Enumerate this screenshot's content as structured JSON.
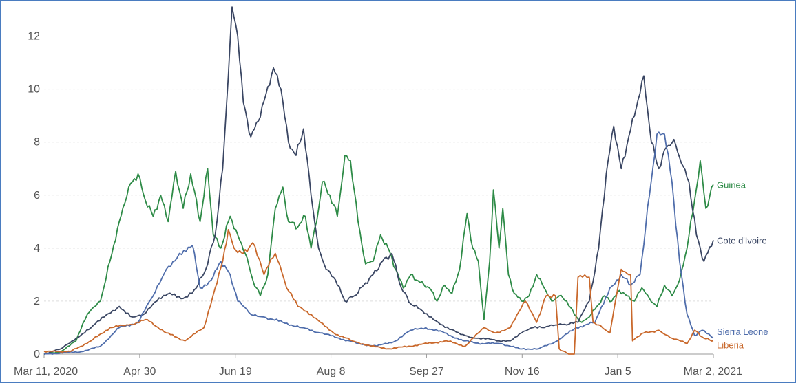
{
  "chart_data": {
    "type": "line",
    "title": "",
    "xlabel": "",
    "ylabel": "",
    "ylim": [
      0,
      13
    ],
    "grid": true,
    "x_range": [
      "2020-03-11",
      "2021-03-02"
    ],
    "x_tick_labels": [
      "Mar 11, 2020",
      "Apr 30",
      "Jun 19",
      "Aug 8",
      "Sep 27",
      "Nov 16",
      "Jan 5",
      "Mar 2, 2021"
    ],
    "y_ticks": [
      0,
      2,
      4,
      6,
      8,
      10,
      12
    ],
    "y_tick_labels": [
      "0",
      "2",
      "4",
      "6",
      "8",
      "10",
      "12"
    ],
    "series": [
      {
        "name": "Guinea",
        "color": "#2e8b47",
        "points": [
          [
            "2020-03-11",
            0.0
          ],
          [
            "2020-03-20",
            0.1
          ],
          [
            "2020-03-28",
            0.5
          ],
          [
            "2020-04-03",
            1.5
          ],
          [
            "2020-04-10",
            2.0
          ],
          [
            "2020-04-15",
            3.5
          ],
          [
            "2020-04-20",
            5.0
          ],
          [
            "2020-04-25",
            6.3
          ],
          [
            "2020-04-30",
            6.8
          ],
          [
            "2020-05-03",
            6.0
          ],
          [
            "2020-05-08",
            5.2
          ],
          [
            "2020-05-12",
            6.0
          ],
          [
            "2020-05-16",
            5.0
          ],
          [
            "2020-05-20",
            6.9
          ],
          [
            "2020-05-24",
            5.5
          ],
          [
            "2020-05-28",
            6.8
          ],
          [
            "2020-06-02",
            5.0
          ],
          [
            "2020-06-06",
            7.0
          ],
          [
            "2020-06-09",
            4.5
          ],
          [
            "2020-06-13",
            4.0
          ],
          [
            "2020-06-18",
            5.2
          ],
          [
            "2020-06-22",
            4.5
          ],
          [
            "2020-06-26",
            3.8
          ],
          [
            "2020-06-30",
            2.8
          ],
          [
            "2020-07-04",
            2.2
          ],
          [
            "2020-07-08",
            3.0
          ],
          [
            "2020-07-12",
            5.5
          ],
          [
            "2020-07-16",
            6.3
          ],
          [
            "2020-07-19",
            5.0
          ],
          [
            "2020-07-24",
            4.8
          ],
          [
            "2020-07-28",
            5.2
          ],
          [
            "2020-07-31",
            4.0
          ],
          [
            "2020-08-03",
            5.0
          ],
          [
            "2020-08-06",
            6.5
          ],
          [
            "2020-08-10",
            6.0
          ],
          [
            "2020-08-14",
            5.2
          ],
          [
            "2020-08-18",
            7.5
          ],
          [
            "2020-08-21",
            7.3
          ],
          [
            "2020-08-25",
            5.0
          ],
          [
            "2020-08-29",
            3.4
          ],
          [
            "2020-09-02",
            3.5
          ],
          [
            "2020-09-06",
            4.5
          ],
          [
            "2020-09-10",
            4.0
          ],
          [
            "2020-09-14",
            3.2
          ],
          [
            "2020-09-18",
            2.5
          ],
          [
            "2020-09-22",
            3.0
          ],
          [
            "2020-09-27",
            2.7
          ],
          [
            "2020-10-02",
            2.5
          ],
          [
            "2020-10-06",
            2.0
          ],
          [
            "2020-10-10",
            2.6
          ],
          [
            "2020-10-14",
            2.3
          ],
          [
            "2020-10-18",
            3.2
          ],
          [
            "2020-10-22",
            5.3
          ],
          [
            "2020-10-25",
            4.0
          ],
          [
            "2020-10-28",
            3.5
          ],
          [
            "2020-10-31",
            1.3
          ],
          [
            "2020-11-03",
            3.5
          ],
          [
            "2020-11-05",
            6.2
          ],
          [
            "2020-11-08",
            4.0
          ],
          [
            "2020-11-10",
            5.5
          ],
          [
            "2020-11-13",
            3.0
          ],
          [
            "2020-11-16",
            2.3
          ],
          [
            "2020-11-20",
            2.0
          ],
          [
            "2020-11-24",
            2.2
          ],
          [
            "2020-11-28",
            3.0
          ],
          [
            "2020-12-02",
            2.5
          ],
          [
            "2020-12-06",
            2.0
          ],
          [
            "2020-12-10",
            2.2
          ],
          [
            "2020-12-14",
            2.0
          ],
          [
            "2020-12-18",
            1.5
          ],
          [
            "2020-12-22",
            1.2
          ],
          [
            "2020-12-26",
            1.4
          ],
          [
            "2020-12-30",
            1.8
          ],
          [
            "2021-01-03",
            2.2
          ],
          [
            "2021-01-07",
            2.0
          ],
          [
            "2021-01-11",
            2.4
          ],
          [
            "2021-01-15",
            2.2
          ],
          [
            "2021-01-19",
            2.0
          ],
          [
            "2021-01-23",
            2.5
          ],
          [
            "2021-01-27",
            2.1
          ],
          [
            "2021-01-31",
            1.8
          ],
          [
            "2021-02-04",
            2.6
          ],
          [
            "2021-02-08",
            2.2
          ],
          [
            "2021-02-12",
            2.8
          ],
          [
            "2021-02-16",
            4.0
          ],
          [
            "2021-02-20",
            5.8
          ],
          [
            "2021-02-23",
            7.3
          ],
          [
            "2021-02-26",
            5.5
          ],
          [
            "2021-03-02",
            6.4
          ]
        ]
      },
      {
        "name": "Cote d'Ivoire",
        "color": "#3a4663",
        "points": [
          [
            "2020-03-11",
            0.0
          ],
          [
            "2020-03-20",
            0.2
          ],
          [
            "2020-03-28",
            0.6
          ],
          [
            "2020-04-05",
            1.0
          ],
          [
            "2020-04-12",
            1.4
          ],
          [
            "2020-04-20",
            1.8
          ],
          [
            "2020-04-27",
            1.4
          ],
          [
            "2020-05-03",
            1.5
          ],
          [
            "2020-05-10",
            2.0
          ],
          [
            "2020-05-17",
            2.3
          ],
          [
            "2020-05-24",
            2.1
          ],
          [
            "2020-05-31",
            2.5
          ],
          [
            "2020-06-05",
            3.2
          ],
          [
            "2020-06-10",
            4.5
          ],
          [
            "2020-06-14",
            7.0
          ],
          [
            "2020-06-17",
            10.5
          ],
          [
            "2020-06-19",
            13.1
          ],
          [
            "2020-06-22",
            12.0
          ],
          [
            "2020-06-25",
            9.5
          ],
          [
            "2020-06-29",
            8.2
          ],
          [
            "2020-07-03",
            8.8
          ],
          [
            "2020-07-07",
            9.8
          ],
          [
            "2020-07-11",
            10.8
          ],
          [
            "2020-07-15",
            10.0
          ],
          [
            "2020-07-19",
            8.0
          ],
          [
            "2020-07-23",
            7.5
          ],
          [
            "2020-07-27",
            8.5
          ],
          [
            "2020-07-31",
            6.0
          ],
          [
            "2020-08-04",
            4.0
          ],
          [
            "2020-08-08",
            3.2
          ],
          [
            "2020-08-13",
            2.8
          ],
          [
            "2020-08-18",
            2.0
          ],
          [
            "2020-08-23",
            2.2
          ],
          [
            "2020-08-28",
            2.6
          ],
          [
            "2020-09-02",
            3.0
          ],
          [
            "2020-09-07",
            3.5
          ],
          [
            "2020-09-12",
            3.8
          ],
          [
            "2020-09-17",
            2.5
          ],
          [
            "2020-09-22",
            1.9
          ],
          [
            "2020-09-27",
            1.7
          ],
          [
            "2020-10-03",
            1.4
          ],
          [
            "2020-10-09",
            1.1
          ],
          [
            "2020-10-15",
            0.9
          ],
          [
            "2020-10-21",
            0.7
          ],
          [
            "2020-10-27",
            0.6
          ],
          [
            "2020-11-02",
            0.6
          ],
          [
            "2020-11-08",
            0.5
          ],
          [
            "2020-11-14",
            0.5
          ],
          [
            "2020-11-20",
            0.8
          ],
          [
            "2020-11-26",
            1.0
          ],
          [
            "2020-12-02",
            1.0
          ],
          [
            "2020-12-08",
            1.1
          ],
          [
            "2020-12-14",
            1.1
          ],
          [
            "2020-12-20",
            1.2
          ],
          [
            "2020-12-26",
            2.0
          ],
          [
            "2020-12-31",
            4.0
          ],
          [
            "2021-01-04",
            6.8
          ],
          [
            "2021-01-08",
            8.6
          ],
          [
            "2021-01-12",
            7.0
          ],
          [
            "2021-01-16",
            8.2
          ],
          [
            "2021-01-20",
            9.3
          ],
          [
            "2021-01-24",
            10.5
          ],
          [
            "2021-01-28",
            8.0
          ],
          [
            "2021-02-01",
            7.0
          ],
          [
            "2021-02-05",
            7.8
          ],
          [
            "2021-02-09",
            8.1
          ],
          [
            "2021-02-13",
            7.2
          ],
          [
            "2021-02-17",
            6.5
          ],
          [
            "2021-02-21",
            4.5
          ],
          [
            "2021-02-25",
            3.5
          ],
          [
            "2021-03-02",
            4.3
          ]
        ]
      },
      {
        "name": "Sierra Leone",
        "color": "#4f6dab",
        "points": [
          [
            "2020-03-11",
            0.0
          ],
          [
            "2020-04-01",
            0.1
          ],
          [
            "2020-04-10",
            0.3
          ],
          [
            "2020-04-20",
            1.0
          ],
          [
            "2020-04-30",
            1.2
          ],
          [
            "2020-05-08",
            2.2
          ],
          [
            "2020-05-15",
            3.2
          ],
          [
            "2020-05-22",
            3.8
          ],
          [
            "2020-05-29",
            4.1
          ],
          [
            "2020-06-02",
            2.5
          ],
          [
            "2020-06-08",
            2.8
          ],
          [
            "2020-06-13",
            3.5
          ],
          [
            "2020-06-18",
            3.0
          ],
          [
            "2020-06-22",
            2.0
          ],
          [
            "2020-06-29",
            1.5
          ],
          [
            "2020-07-06",
            1.4
          ],
          [
            "2020-07-16",
            1.2
          ],
          [
            "2020-07-26",
            1.0
          ],
          [
            "2020-08-05",
            0.8
          ],
          [
            "2020-08-15",
            0.6
          ],
          [
            "2020-08-25",
            0.4
          ],
          [
            "2020-09-04",
            0.3
          ],
          [
            "2020-09-14",
            0.5
          ],
          [
            "2020-09-22",
            0.9
          ],
          [
            "2020-09-30",
            1.0
          ],
          [
            "2020-10-10",
            0.8
          ],
          [
            "2020-10-20",
            0.5
          ],
          [
            "2020-10-30",
            0.4
          ],
          [
            "2020-11-09",
            0.4
          ],
          [
            "2020-11-19",
            0.2
          ],
          [
            "2020-11-29",
            0.2
          ],
          [
            "2020-12-09",
            0.5
          ],
          [
            "2020-12-19",
            1.0
          ],
          [
            "2020-12-29",
            1.2
          ],
          [
            "2021-01-06",
            2.5
          ],
          [
            "2021-01-12",
            3.0
          ],
          [
            "2021-01-17",
            2.6
          ],
          [
            "2021-01-22",
            3.0
          ],
          [
            "2021-01-27",
            6.0
          ],
          [
            "2021-01-31",
            8.3
          ],
          [
            "2021-02-04",
            8.3
          ],
          [
            "2021-02-08",
            6.5
          ],
          [
            "2021-02-12",
            3.5
          ],
          [
            "2021-02-16",
            1.5
          ],
          [
            "2021-02-20",
            0.7
          ],
          [
            "2021-02-24",
            0.9
          ],
          [
            "2021-03-02",
            0.6
          ]
        ]
      },
      {
        "name": "Liberia",
        "color": "#c9682b",
        "points": [
          [
            "2020-03-11",
            0.1
          ],
          [
            "2020-03-25",
            0.1
          ],
          [
            "2020-04-05",
            0.5
          ],
          [
            "2020-04-15",
            1.0
          ],
          [
            "2020-04-25",
            1.1
          ],
          [
            "2020-05-05",
            1.3
          ],
          [
            "2020-05-15",
            0.8
          ],
          [
            "2020-05-25",
            0.5
          ],
          [
            "2020-06-04",
            1.0
          ],
          [
            "2020-06-10",
            2.5
          ],
          [
            "2020-06-14",
            3.5
          ],
          [
            "2020-06-17",
            4.7
          ],
          [
            "2020-06-20",
            4.0
          ],
          [
            "2020-06-25",
            3.8
          ],
          [
            "2020-06-30",
            4.2
          ],
          [
            "2020-07-06",
            3.0
          ],
          [
            "2020-07-12",
            3.8
          ],
          [
            "2020-07-18",
            2.5
          ],
          [
            "2020-07-24",
            1.8
          ],
          [
            "2020-07-30",
            1.5
          ],
          [
            "2020-08-05",
            1.2
          ],
          [
            "2020-08-12",
            0.8
          ],
          [
            "2020-08-22",
            0.5
          ],
          [
            "2020-09-01",
            0.3
          ],
          [
            "2020-09-11",
            0.2
          ],
          [
            "2020-09-21",
            0.3
          ],
          [
            "2020-10-01",
            0.4
          ],
          [
            "2020-10-11",
            0.5
          ],
          [
            "2020-10-21",
            0.3
          ],
          [
            "2020-10-31",
            1.0
          ],
          [
            "2020-11-06",
            0.8
          ],
          [
            "2020-11-14",
            1.0
          ],
          [
            "2020-11-22",
            2.0
          ],
          [
            "2020-11-28",
            1.2
          ],
          [
            "2020-12-03",
            2.2
          ],
          [
            "2020-12-08",
            2.2
          ],
          [
            "2020-12-10",
            0.2
          ],
          [
            "2020-12-15",
            0.0
          ],
          [
            "2020-12-18",
            0.0
          ],
          [
            "2020-12-20",
            2.9
          ],
          [
            "2020-12-26",
            2.9
          ],
          [
            "2020-12-28",
            1.2
          ],
          [
            "2021-01-02",
            1.0
          ],
          [
            "2021-01-06",
            0.8
          ],
          [
            "2021-01-12",
            3.2
          ],
          [
            "2021-01-17",
            3.0
          ],
          [
            "2021-01-18",
            0.5
          ],
          [
            "2021-01-24",
            0.8
          ],
          [
            "2021-02-01",
            0.9
          ],
          [
            "2021-02-08",
            0.6
          ],
          [
            "2021-02-16",
            0.4
          ],
          [
            "2021-02-20",
            0.9
          ],
          [
            "2021-02-25",
            0.6
          ],
          [
            "2021-03-02",
            0.5
          ]
        ]
      }
    ]
  }
}
